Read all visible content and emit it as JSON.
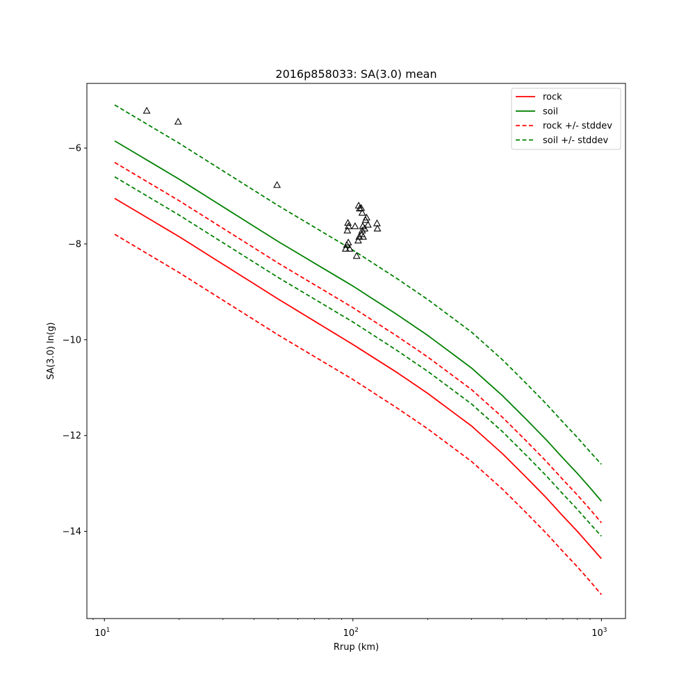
{
  "chart_data": {
    "type": "line",
    "title": "2016p858033: SA(3.0) mean",
    "xlabel": "Rrup (km)",
    "ylabel": "SA(3.0) ln(g)",
    "xscale": "log",
    "xlim": [
      8.5,
      1250
    ],
    "ylim": [
      -15.82,
      -4.65
    ],
    "x_ticks": [
      {
        "value": 10,
        "label": "10",
        "exp": "1"
      },
      {
        "value": 100,
        "label": "10",
        "exp": "2"
      },
      {
        "value": 1000,
        "label": "10",
        "exp": "3"
      }
    ],
    "y_ticks": [
      {
        "value": -14,
        "label": "−14"
      },
      {
        "value": -12,
        "label": "−12"
      },
      {
        "value": -10,
        "label": "−10"
      },
      {
        "value": -8,
        "label": "−8"
      },
      {
        "value": -6,
        "label": "−6"
      }
    ],
    "grid": false,
    "legend": {
      "position": "top-right",
      "entries": [
        {
          "label": "rock",
          "color": "#ff0000",
          "dash": false
        },
        {
          "label": "soil",
          "color": "#008000",
          "dash": false
        },
        {
          "label": "rock +/- stddev",
          "color": "#ff0000",
          "dash": true
        },
        {
          "label": "soil +/- stddev",
          "color": "#008000",
          "dash": true
        }
      ]
    },
    "series": [
      {
        "name": "rock",
        "color": "#ff0000",
        "dash": false,
        "x": [
          11,
          20,
          50,
          100,
          150,
          200,
          300,
          400,
          500,
          600,
          700,
          800,
          900,
          1000
        ],
        "y": [
          -7.05,
          -7.85,
          -9.15,
          -10.1,
          -10.68,
          -11.12,
          -11.8,
          -12.38,
          -12.88,
          -13.3,
          -13.68,
          -14.0,
          -14.3,
          -14.57
        ]
      },
      {
        "name": "soil",
        "color": "#008000",
        "dash": false,
        "x": [
          11,
          20,
          50,
          100,
          150,
          200,
          300,
          400,
          500,
          600,
          700,
          800,
          900,
          1000
        ],
        "y": [
          -5.85,
          -6.65,
          -7.95,
          -8.88,
          -9.47,
          -9.91,
          -10.59,
          -11.17,
          -11.67,
          -12.09,
          -12.47,
          -12.79,
          -13.09,
          -13.37
        ]
      },
      {
        "name": "rock +/- stddev",
        "color": "#ff0000",
        "dash": true,
        "x": [
          11,
          20,
          50,
          100,
          150,
          200,
          300,
          400,
          500,
          600,
          700,
          800,
          900,
          1000
        ],
        "y": [
          -6.3,
          -7.1,
          -8.4,
          -9.33,
          -9.92,
          -10.36,
          -11.04,
          -11.62,
          -12.12,
          -12.54,
          -12.92,
          -13.24,
          -13.54,
          -13.82
        ]
      },
      {
        "name": "rock +/- stddev",
        "color": "#ff0000",
        "dash": true,
        "x": [
          11,
          20,
          50,
          100,
          150,
          200,
          300,
          400,
          500,
          600,
          700,
          800,
          900,
          1000
        ],
        "y": [
          -7.8,
          -8.6,
          -9.9,
          -10.83,
          -11.42,
          -11.86,
          -12.54,
          -13.12,
          -13.62,
          -14.04,
          -14.42,
          -14.74,
          -15.04,
          -15.32
        ]
      },
      {
        "name": "soil +/- stddev",
        "color": "#008000",
        "dash": true,
        "x": [
          11,
          20,
          50,
          100,
          150,
          200,
          300,
          400,
          500,
          600,
          700,
          800,
          900,
          1000
        ],
        "y": [
          -5.1,
          -5.9,
          -7.2,
          -8.13,
          -8.72,
          -9.16,
          -9.84,
          -10.42,
          -10.92,
          -11.34,
          -11.72,
          -12.04,
          -12.34,
          -12.6
        ]
      },
      {
        "name": "soil +/- stddev",
        "color": "#008000",
        "dash": true,
        "x": [
          11,
          20,
          50,
          100,
          150,
          200,
          300,
          400,
          500,
          600,
          700,
          800,
          900,
          1000
        ],
        "y": [
          -6.6,
          -7.4,
          -8.7,
          -9.63,
          -10.22,
          -10.66,
          -11.34,
          -11.92,
          -12.42,
          -12.84,
          -13.22,
          -13.54,
          -13.84,
          -14.1
        ]
      }
    ],
    "observations": {
      "marker": "triangle",
      "color": "#000000",
      "points": [
        {
          "x": 14.8,
          "y": -5.22
        },
        {
          "x": 19.8,
          "y": -5.45
        },
        {
          "x": 49.5,
          "y": -6.77
        },
        {
          "x": 95.5,
          "y": -7.56
        },
        {
          "x": 96.0,
          "y": -7.63
        },
        {
          "x": 95.0,
          "y": -7.72
        },
        {
          "x": 95.8,
          "y": -7.97
        },
        {
          "x": 94.5,
          "y": -8.02
        },
        {
          "x": 93.5,
          "y": -8.1
        },
        {
          "x": 97.0,
          "y": -8.1
        },
        {
          "x": 102.0,
          "y": -7.63
        },
        {
          "x": 103.5,
          "y": -8.25
        },
        {
          "x": 105.5,
          "y": -7.2
        },
        {
          "x": 106.5,
          "y": -7.26
        },
        {
          "x": 108.0,
          "y": -7.25
        },
        {
          "x": 109.0,
          "y": -7.35
        },
        {
          "x": 106.0,
          "y": -7.85
        },
        {
          "x": 105.0,
          "y": -7.93
        },
        {
          "x": 109.5,
          "y": -7.63
        },
        {
          "x": 109.0,
          "y": -7.72
        },
        {
          "x": 108.5,
          "y": -7.8
        },
        {
          "x": 110.0,
          "y": -7.85
        },
        {
          "x": 111.5,
          "y": -7.68
        },
        {
          "x": 112.5,
          "y": -7.5
        },
        {
          "x": 115.0,
          "y": -7.6
        },
        {
          "x": 113.5,
          "y": -7.45
        },
        {
          "x": 125.0,
          "y": -7.57
        },
        {
          "x": 125.5,
          "y": -7.68
        }
      ]
    }
  }
}
